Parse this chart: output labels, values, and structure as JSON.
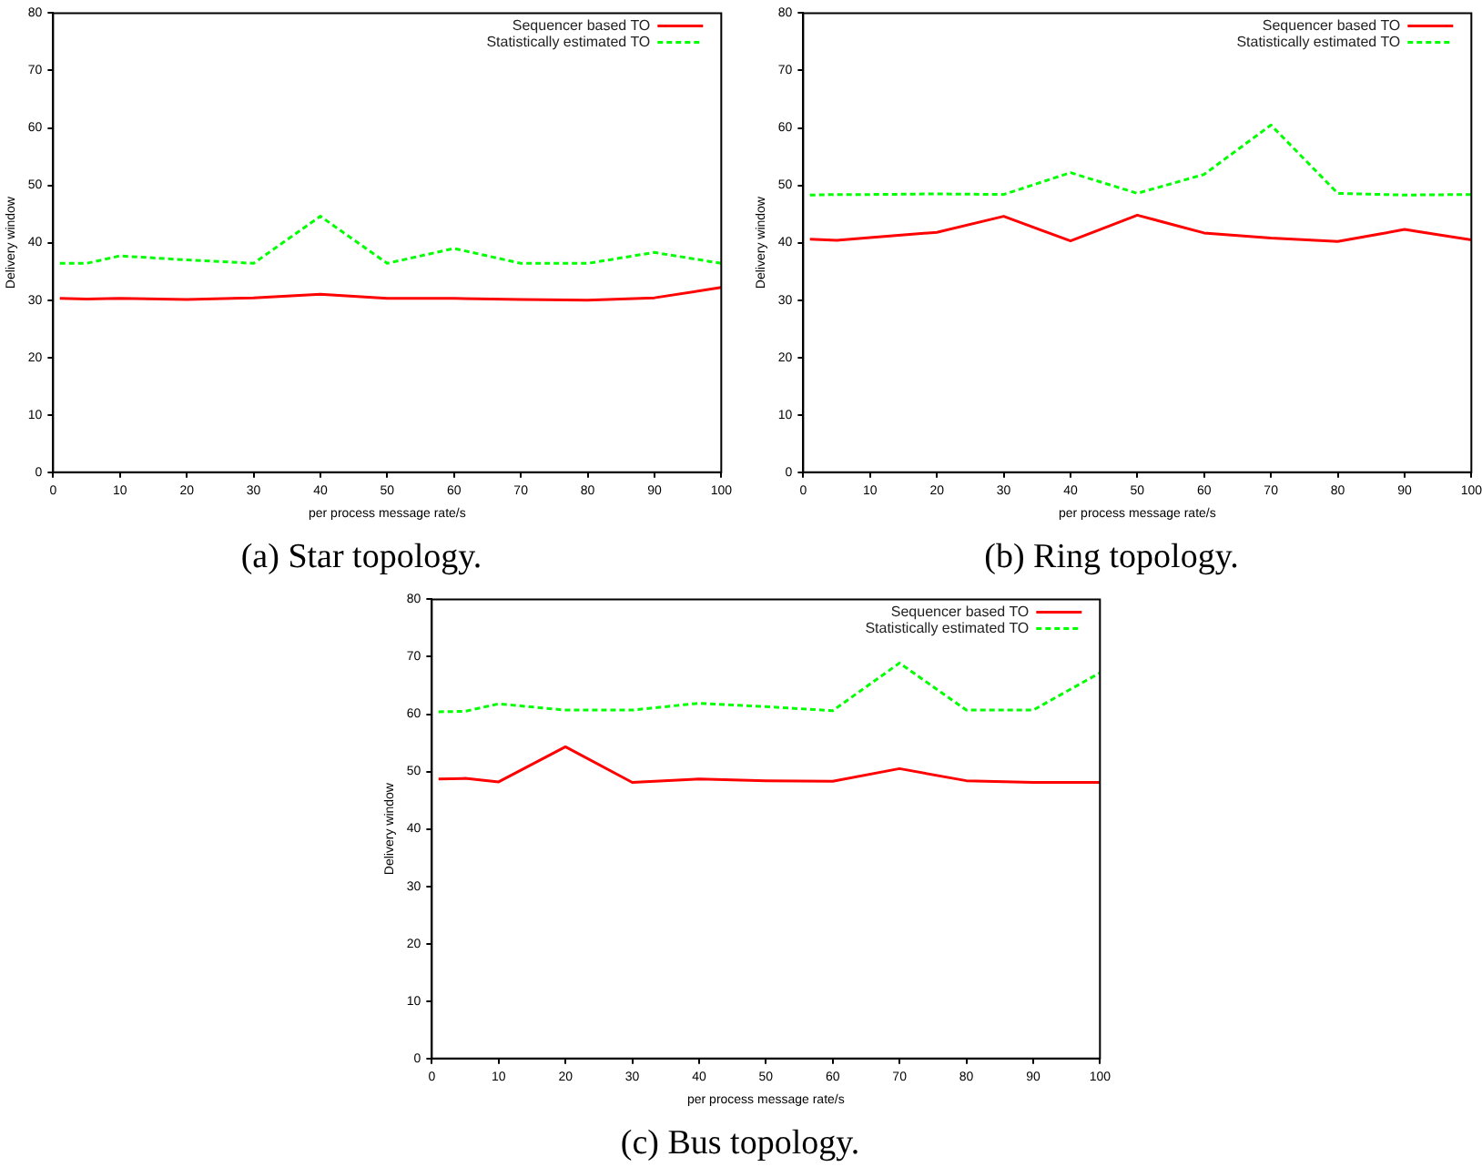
{
  "chart_data": [
    {
      "type": "line",
      "title": "(a) Star topology.",
      "xlabel": "per process message rate/s",
      "ylabel": "Delivery window",
      "x": [
        1,
        5,
        10,
        20,
        30,
        40,
        50,
        60,
        70,
        80,
        90,
        100
      ],
      "xlim": [
        0,
        100
      ],
      "xticks": [
        0,
        10,
        20,
        30,
        40,
        50,
        60,
        70,
        80,
        90,
        100
      ],
      "ylim": [
        0,
        80
      ],
      "yticks": [
        0,
        10,
        20,
        30,
        40,
        50,
        60,
        70,
        80
      ],
      "grid": false,
      "legend": "top right",
      "marker": "none",
      "series": [
        {
          "name": "Sequencer based TO",
          "color": "#ff0000",
          "line_style": "solid",
          "values": [
            30.3,
            30.2,
            30.3,
            30.1,
            30.4,
            31,
            30.3,
            30.3,
            30.1,
            30,
            30.4,
            32.2
          ]
        },
        {
          "name": "Statistically estimated TO",
          "color": "#00ff00",
          "line_style": "dashed",
          "values": [
            36.4,
            36.4,
            37.7,
            37,
            36.4,
            44.6,
            36.4,
            39,
            36.4,
            36.4,
            38.3,
            36.4
          ]
        }
      ]
    },
    {
      "type": "line",
      "title": "(b) Ring topology.",
      "xlabel": "per process message rate/s",
      "ylabel": "Delivery window",
      "x": [
        1,
        5,
        10,
        20,
        30,
        40,
        50,
        60,
        70,
        80,
        90,
        100
      ],
      "xlim": [
        0,
        100
      ],
      "xticks": [
        0,
        10,
        20,
        30,
        40,
        50,
        60,
        70,
        80,
        90,
        100
      ],
      "ylim": [
        0,
        80
      ],
      "yticks": [
        0,
        10,
        20,
        30,
        40,
        50,
        60,
        70,
        80
      ],
      "grid": false,
      "legend": "top right",
      "marker": "none",
      "series": [
        {
          "name": "Sequencer based TO",
          "color": "#ff0000",
          "line_style": "solid",
          "values": [
            40.6,
            40.4,
            40.9,
            41.8,
            44.6,
            40.3,
            44.8,
            41.7,
            40.8,
            40.2,
            42.3,
            40.5
          ]
        },
        {
          "name": "Statistically estimated TO",
          "color": "#00ff00",
          "line_style": "dashed",
          "values": [
            48.3,
            48.4,
            48.4,
            48.5,
            48.4,
            52.2,
            48.6,
            51.9,
            60.5,
            48.6,
            48.3,
            48.4
          ]
        }
      ]
    },
    {
      "type": "line",
      "title": "(c) Bus topology.",
      "xlabel": "per process message rate/s",
      "ylabel": "Delivery window",
      "x": [
        1,
        5,
        10,
        20,
        30,
        40,
        50,
        60,
        70,
        80,
        90,
        100
      ],
      "xlim": [
        0,
        100
      ],
      "xticks": [
        0,
        10,
        20,
        30,
        40,
        50,
        60,
        70,
        80,
        90,
        100
      ],
      "ylim": [
        0,
        80
      ],
      "yticks": [
        0,
        10,
        20,
        30,
        40,
        50,
        60,
        70,
        80
      ],
      "grid": false,
      "legend": "top right",
      "marker": "none",
      "series": [
        {
          "name": "Sequencer based TO",
          "color": "#ff0000",
          "line_style": "solid",
          "values": [
            48.7,
            48.8,
            48.2,
            54.3,
            48.1,
            48.7,
            48.4,
            48.3,
            50.5,
            48.4,
            48.1,
            48.1
          ]
        },
        {
          "name": "Statistically estimated TO",
          "color": "#00ff00",
          "line_style": "dashed",
          "values": [
            60.4,
            60.5,
            61.8,
            60.7,
            60.7,
            61.9,
            61.3,
            60.6,
            68.9,
            60.7,
            60.7,
            67.2
          ]
        }
      ]
    }
  ]
}
